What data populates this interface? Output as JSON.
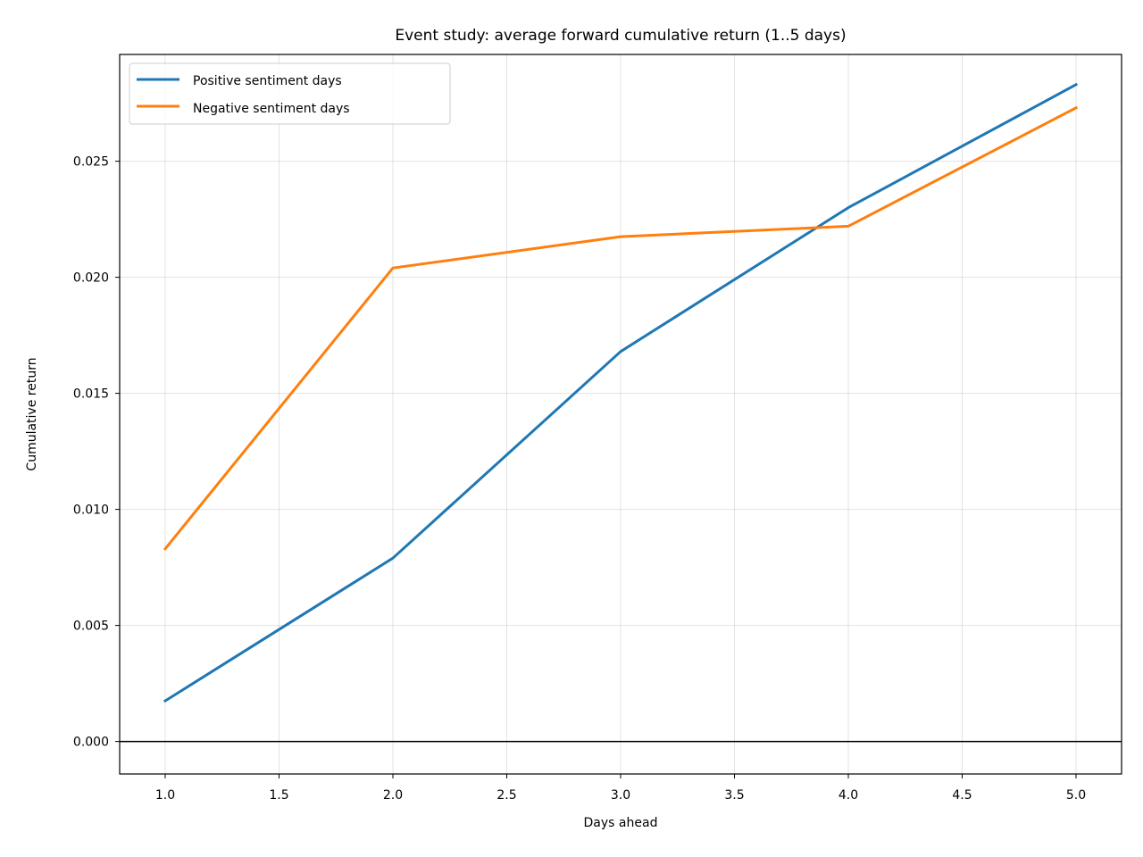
{
  "chart_data": {
    "type": "line",
    "title": "Event study: average forward cumulative return (1..5 days)",
    "xlabel": "Days ahead",
    "ylabel": "Cumulative return",
    "x": [
      1,
      2,
      3,
      4,
      5
    ],
    "xlim": [
      0.8,
      5.2
    ],
    "ylim": [
      -0.0014,
      0.0296
    ],
    "xticks": [
      "1.0",
      "1.5",
      "2.0",
      "2.5",
      "3.0",
      "3.5",
      "4.0",
      "4.5",
      "5.0"
    ],
    "yticks": [
      "0.000",
      "0.005",
      "0.010",
      "0.015",
      "0.020",
      "0.025"
    ],
    "grid": true,
    "legend_position": "top-left",
    "zero_line": true,
    "series": [
      {
        "name": "Positive sentiment days",
        "color": "#1f77b4",
        "values": [
          0.00175,
          0.0079,
          0.0168,
          0.023,
          0.0283
        ]
      },
      {
        "name": "Negative sentiment days",
        "color": "#ff7f0e",
        "values": [
          0.0083,
          0.0204,
          0.02175,
          0.0222,
          0.0273
        ]
      }
    ]
  }
}
